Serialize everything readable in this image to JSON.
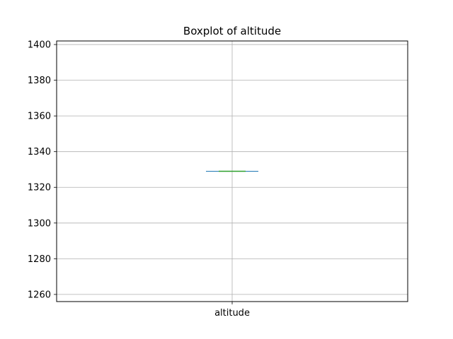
{
  "chart_data": {
    "type": "box",
    "title": "Boxplot of altitude",
    "categories": [
      "altitude"
    ],
    "series": [
      {
        "name": "altitude",
        "whisker_low": 1329,
        "q1": 1329,
        "median": 1329,
        "q3": 1329,
        "whisker_high": 1329
      }
    ],
    "ylim": [
      1256,
      1402
    ],
    "yticks": [
      1260,
      1280,
      1300,
      1320,
      1340,
      1360,
      1380,
      1400
    ],
    "grid": true,
    "colors": {
      "box": "#1f77b4",
      "median": "#2ca02c",
      "grid": "#b0b0b0",
      "axes": "#000000"
    }
  }
}
